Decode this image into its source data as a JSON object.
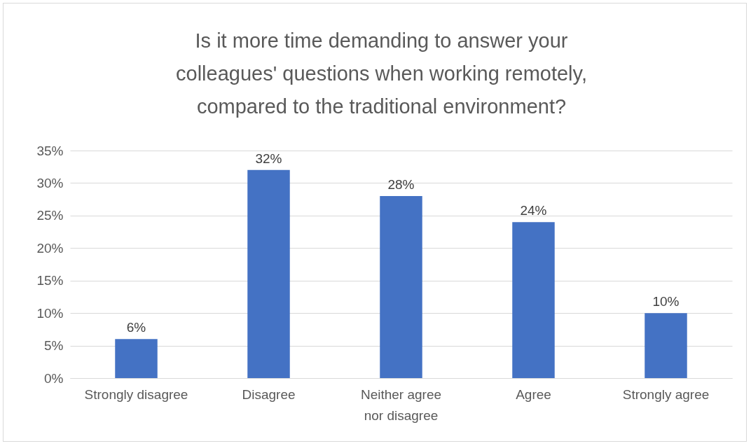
{
  "chart_data": {
    "type": "bar",
    "title": "Is it more time demanding to answer your colleagues' questions when working remotely, compared to the traditional environment?",
    "categories": [
      "Strongly disagree",
      "Disagree",
      "Neither agree nor disagree",
      "Agree",
      "Strongly agree"
    ],
    "values": [
      6,
      32,
      28,
      24,
      10
    ],
    "value_labels": [
      "6%",
      "32%",
      "28%",
      "24%",
      "10%"
    ],
    "color": "#4472c4",
    "ylim": [
      0,
      35
    ],
    "yticks": [
      {
        "value": 0,
        "label": "0%"
      },
      {
        "value": 5,
        "label": "5%"
      },
      {
        "value": 10,
        "label": "10%"
      },
      {
        "value": 15,
        "label": "15%"
      },
      {
        "value": 20,
        "label": "20%"
      },
      {
        "value": 25,
        "label": "25%"
      },
      {
        "value": 30,
        "label": "30%"
      },
      {
        "value": 35,
        "label": "35%"
      }
    ],
    "grid": "y"
  }
}
